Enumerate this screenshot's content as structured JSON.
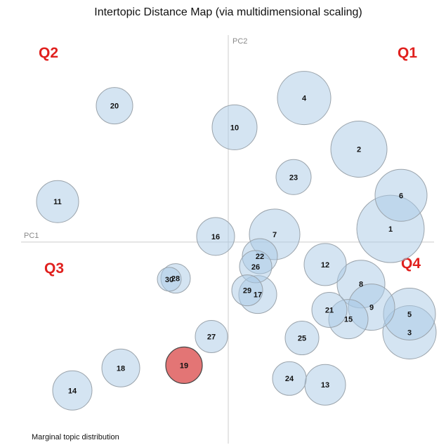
{
  "chart_data": {
    "type": "scatter",
    "title": "Intertopic Distance Map (via multidimensional scaling)",
    "xlabel": "PC1",
    "ylabel": "PC2",
    "xlim": [
      -10,
      10
    ],
    "ylim": [
      -9.67,
      10
    ],
    "quadrant_labels": [
      "Q1",
      "Q2",
      "Q3",
      "Q4"
    ],
    "legend_text": "Marginal topic distribution",
    "highlight_color": "#e06666",
    "bubble_color": "#aac9e6",
    "points": [
      {
        "label": "1",
        "x": 7.7,
        "y": 0.63,
        "r": 48
      },
      {
        "label": "2",
        "x": 6.2,
        "y": 4.43,
        "r": 40
      },
      {
        "label": "3",
        "x": 8.6,
        "y": -4.3,
        "r": 38
      },
      {
        "label": "4",
        "x": 3.6,
        "y": 6.87,
        "r": 38
      },
      {
        "label": "5",
        "x": 8.6,
        "y": -3.43,
        "r": 37
      },
      {
        "label": "6",
        "x": 8.2,
        "y": 2.23,
        "r": 37
      },
      {
        "label": "7",
        "x": 2.2,
        "y": 0.37,
        "r": 36
      },
      {
        "label": "8",
        "x": 6.3,
        "y": -2.0,
        "r": 34
      },
      {
        "label": "9",
        "x": 6.8,
        "y": -3.1,
        "r": 33
      },
      {
        "label": "10",
        "x": 0.3,
        "y": 5.47,
        "r": 32
      },
      {
        "label": "11",
        "x": -8.1,
        "y": 1.93,
        "r": 30
      },
      {
        "label": "12",
        "x": 4.6,
        "y": -1.07,
        "r": 30
      },
      {
        "label": "13",
        "x": 4.6,
        "y": -6.8,
        "r": 29
      },
      {
        "label": "14",
        "x": -7.4,
        "y": -7.07,
        "r": 28
      },
      {
        "label": "15",
        "x": 5.7,
        "y": -3.67,
        "r": 28
      },
      {
        "label": "16",
        "x": -0.6,
        "y": 0.27,
        "r": 27
      },
      {
        "label": "17",
        "x": 1.4,
        "y": -2.5,
        "r": 27
      },
      {
        "label": "18",
        "x": -5.1,
        "y": -6.0,
        "r": 27
      },
      {
        "label": "19",
        "x": -2.1,
        "y": -5.87,
        "r": 26
      },
      {
        "label": "20",
        "x": -5.4,
        "y": 6.5,
        "r": 26
      },
      {
        "label": "21",
        "x": 4.8,
        "y": -3.23,
        "r": 25
      },
      {
        "label": "22",
        "x": 1.5,
        "y": -0.67,
        "r": 25
      },
      {
        "label": "23",
        "x": 3.1,
        "y": 3.1,
        "r": 25
      },
      {
        "label": "24",
        "x": 2.9,
        "y": -6.5,
        "r": 24
      },
      {
        "label": "25",
        "x": 3.5,
        "y": -4.57,
        "r": 24
      },
      {
        "label": "26",
        "x": 1.3,
        "y": -1.17,
        "r": 23
      },
      {
        "label": "27",
        "x": -0.8,
        "y": -4.5,
        "r": 23
      },
      {
        "label": "28",
        "x": -2.5,
        "y": -1.73,
        "r": 21
      },
      {
        "label": "29",
        "x": 0.9,
        "y": -2.3,
        "r": 22
      },
      {
        "label": "30",
        "x": -2.8,
        "y": -1.77,
        "r": 17
      }
    ],
    "highlight": "19"
  }
}
